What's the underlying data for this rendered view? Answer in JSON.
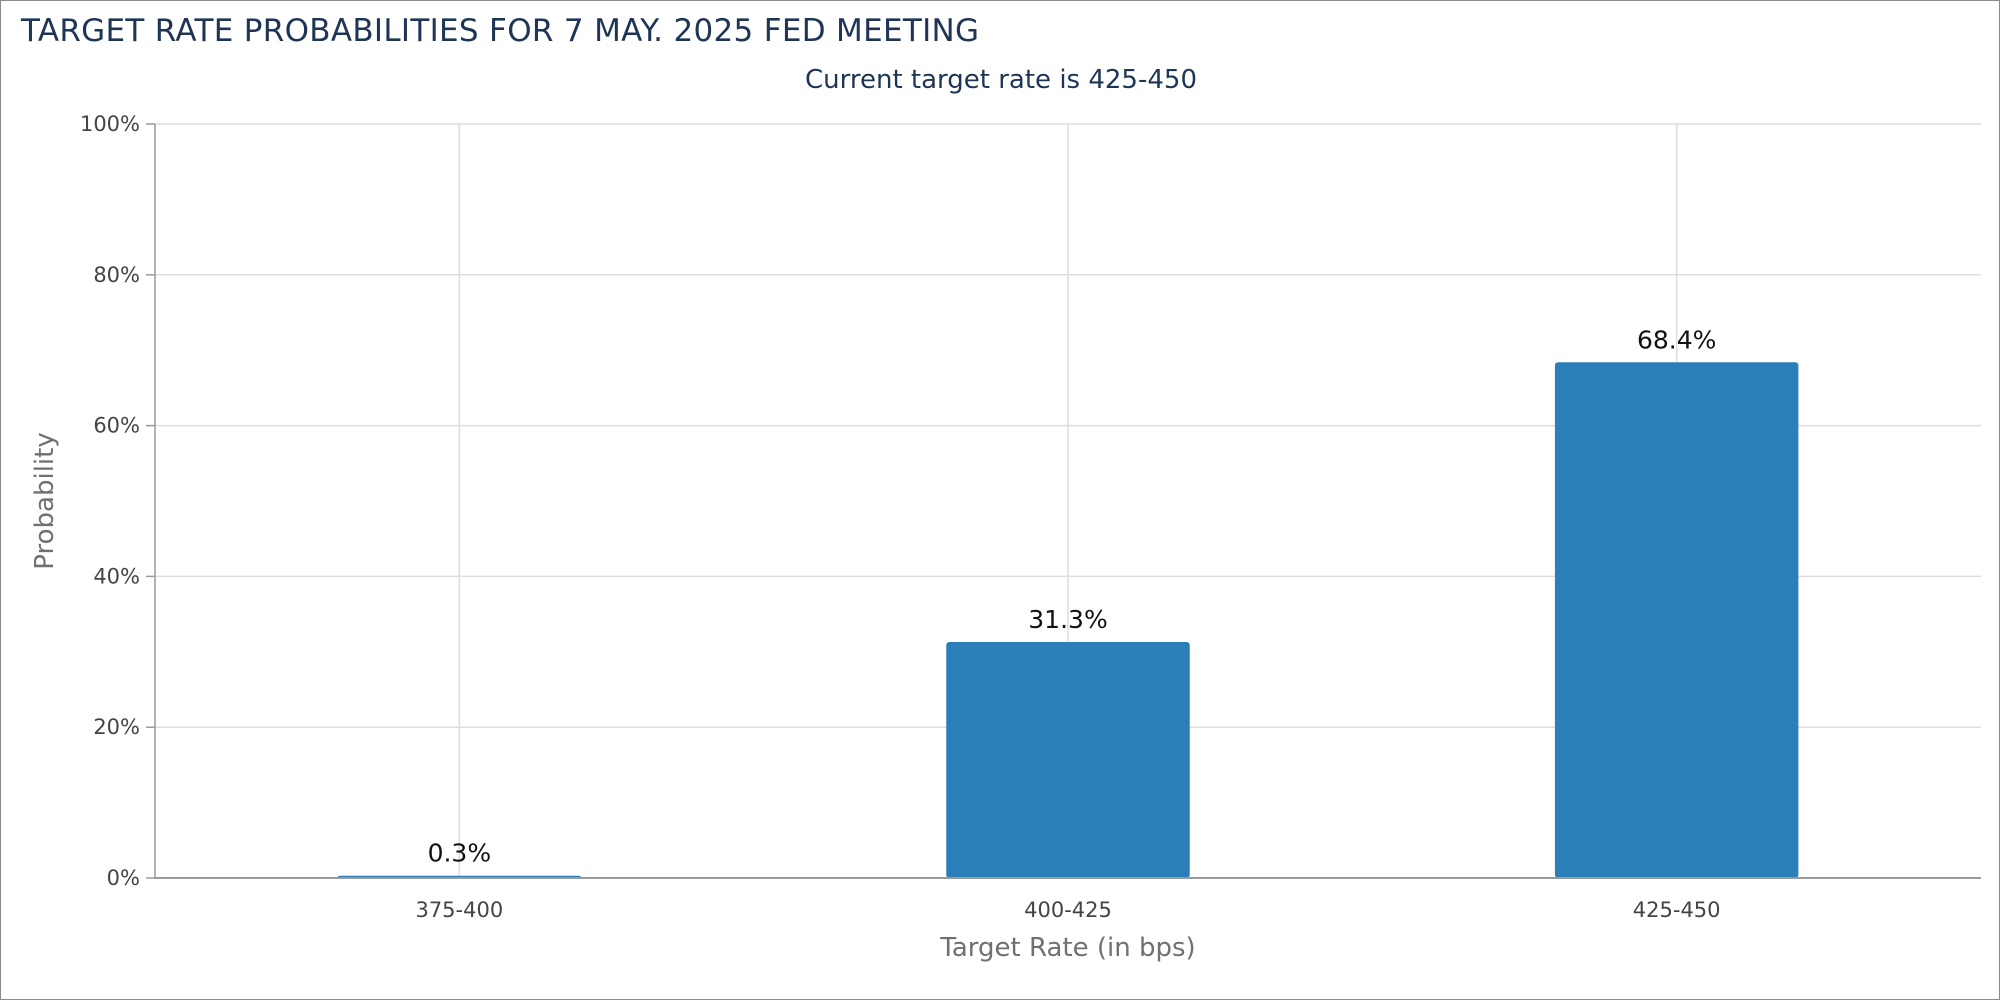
{
  "chart_data": {
    "type": "bar",
    "title": "TARGET RATE PROBABILITIES FOR 7 MAY. 2025 FED MEETING",
    "subtitle": "Current target rate is 425-450",
    "xlabel": "Target Rate (in bps)",
    "ylabel": "Probability",
    "categories": [
      "375-400",
      "400-425",
      "425-450"
    ],
    "values": [
      0.3,
      31.3,
      68.4
    ],
    "data_labels": [
      "0.3%",
      "31.3%",
      "68.4%"
    ],
    "ylim": [
      0,
      100
    ],
    "yticks": [
      0,
      20,
      40,
      60,
      80,
      100
    ],
    "ytick_labels": [
      "0%",
      "20%",
      "40%",
      "60%",
      "80%",
      "100%"
    ],
    "grid": true,
    "bar_color": "#2a7fb8",
    "grid_color": "#dddddd",
    "title_color": "#1f3556"
  }
}
